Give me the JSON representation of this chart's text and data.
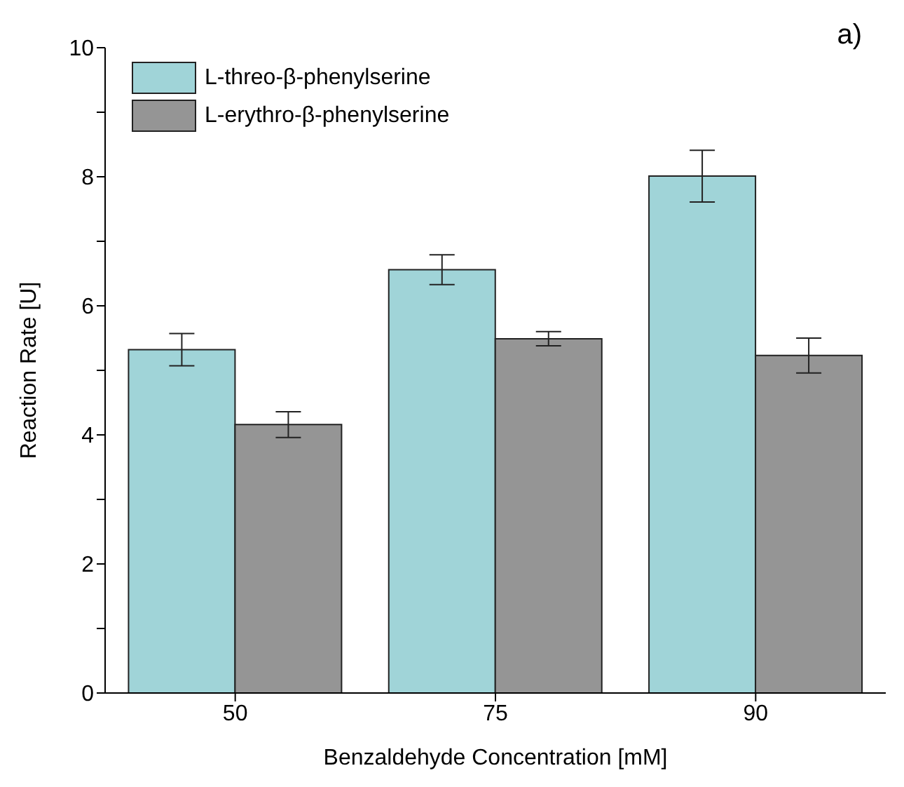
{
  "chart_data": {
    "type": "bar",
    "xlabel": "Benzaldehyde Concentration [mM]",
    "ylabel": "Reaction Rate [U]",
    "annotations": [
      "a)"
    ],
    "categories": [
      "50",
      "75",
      "90"
    ],
    "series": [
      {
        "name": "L-threo-β-phenylserine",
        "color": "#a0d4d8",
        "values": [
          5.32,
          6.56,
          8.01
        ],
        "errors": [
          0.25,
          0.23,
          0.4
        ]
      },
      {
        "name": "L-erythro-β-phenylserine",
        "color": "#959595",
        "values": [
          4.16,
          5.49,
          5.23
        ],
        "errors": [
          0.2,
          0.11,
          0.27
        ]
      }
    ],
    "ylim": [
      0,
      10
    ],
    "yticks": [
      0,
      {
        "value": 1,
        "label": null
      },
      2,
      {
        "value": 3,
        "label": null
      },
      4,
      {
        "value": 5,
        "label": null
      },
      6,
      {
        "value": 7,
        "label": null
      },
      8,
      {
        "value": 9,
        "label": null
      },
      10
    ],
    "grid": false,
    "legend": "top left"
  }
}
